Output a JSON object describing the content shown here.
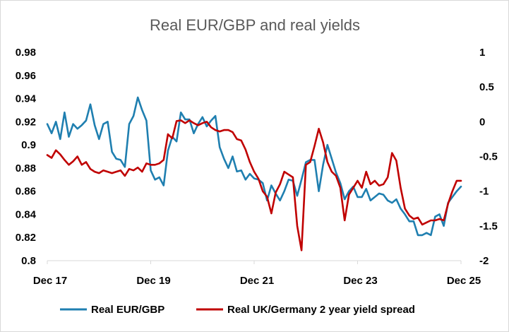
{
  "chart_data": {
    "type": "line",
    "title": "Real EUR/GBP and real yields",
    "x_tick_labels": [
      "Dec 17",
      "Dec 19",
      "Dec 21",
      "Dec 23",
      "Dec 25"
    ],
    "xlim": [
      "2017-12",
      "2025-12"
    ],
    "y_left": {
      "range": [
        0.8,
        0.98
      ],
      "ticks": [
        "0.98",
        "0.96",
        "0.94",
        "0.92",
        "0.9",
        "0.88",
        "0.86",
        "0.84",
        "0.82",
        "0.8"
      ],
      "tick_values": [
        0.98,
        0.96,
        0.94,
        0.92,
        0.9,
        0.88,
        0.86,
        0.84,
        0.82,
        0.8
      ]
    },
    "y_right": {
      "range": [
        -2,
        1
      ],
      "ticks": [
        "1",
        "0.5",
        "0",
        "-0.5",
        "-1",
        "-1.5",
        "-2"
      ],
      "tick_values": [
        1,
        0.5,
        0,
        -0.5,
        -1,
        -1.5,
        -2
      ]
    },
    "grid": false,
    "legend_position": "bottom",
    "series": [
      {
        "name": "Real EUR/GBP",
        "color": "#1f7fb0",
        "axis": "left",
        "x": [
          "2017-12",
          "2018-01",
          "2018-02",
          "2018-03",
          "2018-04",
          "2018-05",
          "2018-06",
          "2018-07",
          "2018-08",
          "2018-09",
          "2018-10",
          "2018-11",
          "2018-12",
          "2019-01",
          "2019-02",
          "2019-03",
          "2019-04",
          "2019-05",
          "2019-06",
          "2019-07",
          "2019-08",
          "2019-09",
          "2019-10",
          "2019-11",
          "2019-12",
          "2020-01",
          "2020-02",
          "2020-03",
          "2020-04",
          "2020-05",
          "2020-06",
          "2020-07",
          "2020-08",
          "2020-09",
          "2020-10",
          "2020-11",
          "2020-12",
          "2021-01",
          "2021-02",
          "2021-03",
          "2021-04",
          "2021-05",
          "2021-06",
          "2021-07",
          "2021-08",
          "2021-09",
          "2021-10",
          "2021-11",
          "2021-12",
          "2022-01",
          "2022-02",
          "2022-03",
          "2022-04",
          "2022-05",
          "2022-06",
          "2022-07",
          "2022-08",
          "2022-09",
          "2022-10",
          "2022-11",
          "2022-12",
          "2023-01",
          "2023-02",
          "2023-03",
          "2023-04",
          "2023-05",
          "2023-06",
          "2023-07",
          "2023-08",
          "2023-09",
          "2023-10",
          "2023-11",
          "2023-12",
          "2024-01",
          "2024-02",
          "2024-03",
          "2024-04",
          "2024-05",
          "2024-06",
          "2024-07",
          "2024-08",
          "2024-09",
          "2024-10",
          "2024-11",
          "2024-12",
          "2025-01",
          "2025-02",
          "2025-03",
          "2025-04",
          "2025-05",
          "2025-06",
          "2025-07",
          "2025-08",
          "2025-09",
          "2025-10",
          "2025-11",
          "2025-12"
        ],
        "y": [
          0.918,
          0.91,
          0.92,
          0.905,
          0.928,
          0.907,
          0.918,
          0.914,
          0.917,
          0.921,
          0.935,
          0.917,
          0.905,
          0.918,
          0.92,
          0.894,
          0.888,
          0.887,
          0.881,
          0.918,
          0.925,
          0.941,
          0.93,
          0.921,
          0.878,
          0.87,
          0.872,
          0.865,
          0.895,
          0.907,
          0.903,
          0.928,
          0.922,
          0.922,
          0.91,
          0.918,
          0.924,
          0.916,
          0.921,
          0.925,
          0.898,
          0.888,
          0.88,
          0.89,
          0.877,
          0.878,
          0.87,
          0.875,
          0.871,
          0.87,
          0.867,
          0.852,
          0.865,
          0.858,
          0.852,
          0.86,
          0.87,
          0.869,
          0.856,
          0.87,
          0.885,
          0.887,
          0.887,
          0.86,
          0.883,
          0.9,
          0.888,
          0.876,
          0.867,
          0.853,
          0.86,
          0.864,
          0.855,
          0.855,
          0.862,
          0.852,
          0.855,
          0.858,
          0.857,
          0.852,
          0.85,
          0.853,
          0.845,
          0.84,
          0.834,
          0.834,
          0.822,
          0.822,
          0.824,
          0.822,
          0.838,
          0.84,
          0.83,
          0.85,
          0.855,
          0.86,
          0.864
        ]
      },
      {
        "name": "Real UK/Germany 2 year yield spread",
        "color": "#c00000",
        "axis": "right",
        "x": [
          "2017-12",
          "2018-01",
          "2018-02",
          "2018-03",
          "2018-04",
          "2018-05",
          "2018-06",
          "2018-07",
          "2018-08",
          "2018-09",
          "2018-10",
          "2018-11",
          "2018-12",
          "2019-01",
          "2019-02",
          "2019-03",
          "2019-04",
          "2019-05",
          "2019-06",
          "2019-07",
          "2019-08",
          "2019-09",
          "2019-10",
          "2019-11",
          "2019-12",
          "2020-01",
          "2020-02",
          "2020-03",
          "2020-04",
          "2020-05",
          "2020-06",
          "2020-07",
          "2020-08",
          "2020-09",
          "2020-10",
          "2020-11",
          "2020-12",
          "2021-01",
          "2021-02",
          "2021-03",
          "2021-04",
          "2021-05",
          "2021-06",
          "2021-07",
          "2021-08",
          "2021-09",
          "2021-10",
          "2021-11",
          "2021-12",
          "2022-01",
          "2022-02",
          "2022-03",
          "2022-04",
          "2022-05",
          "2022-06",
          "2022-07",
          "2022-08",
          "2022-09",
          "2022-10",
          "2022-11",
          "2022-12",
          "2023-01",
          "2023-02",
          "2023-03",
          "2023-04",
          "2023-05",
          "2023-06",
          "2023-07",
          "2023-08",
          "2023-09",
          "2023-10",
          "2023-11",
          "2023-12",
          "2024-01",
          "2024-02",
          "2024-03",
          "2024-04",
          "2024-05",
          "2024-06",
          "2024-07",
          "2024-08",
          "2024-09",
          "2024-10",
          "2024-11",
          "2024-12",
          "2025-01",
          "2025-02",
          "2025-03",
          "2025-04",
          "2025-05",
          "2025-06",
          "2025-07",
          "2025-08",
          "2025-09",
          "2025-10",
          "2025-11",
          "2025-12"
        ],
        "y": [
          -0.48,
          -0.52,
          -0.41,
          -0.47,
          -0.55,
          -0.62,
          -0.57,
          -0.5,
          -0.62,
          -0.58,
          -0.68,
          -0.72,
          -0.74,
          -0.7,
          -0.72,
          -0.74,
          -0.72,
          -0.7,
          -0.78,
          -0.68,
          -0.7,
          -0.66,
          -0.72,
          -0.6,
          -0.62,
          -0.62,
          -0.6,
          -0.55,
          -0.18,
          -0.24,
          0.01,
          0.02,
          -0.02,
          0.02,
          -0.02,
          -0.05,
          -0.02,
          0.0,
          -0.08,
          -0.12,
          -0.14,
          -0.12,
          -0.12,
          -0.15,
          -0.25,
          -0.27,
          -0.4,
          -0.58,
          -0.72,
          -0.82,
          -1.0,
          -1.08,
          -1.32,
          -1.02,
          -0.9,
          -0.72,
          -0.76,
          -0.8,
          -1.5,
          -1.85,
          -0.62,
          -0.58,
          -0.35,
          -0.1,
          -0.3,
          -0.58,
          -0.72,
          -0.78,
          -0.95,
          -1.42,
          -1.05,
          -0.95,
          -0.85,
          -0.95,
          -0.72,
          -0.9,
          -0.85,
          -0.92,
          -0.9,
          -0.8,
          -0.45,
          -0.56,
          -0.95,
          -1.25,
          -1.35,
          -1.4,
          -1.38,
          -1.48,
          -1.45,
          -1.42,
          -1.42,
          -1.4,
          -1.42,
          -1.18,
          -1.0,
          -0.85,
          -0.85
        ]
      }
    ]
  }
}
